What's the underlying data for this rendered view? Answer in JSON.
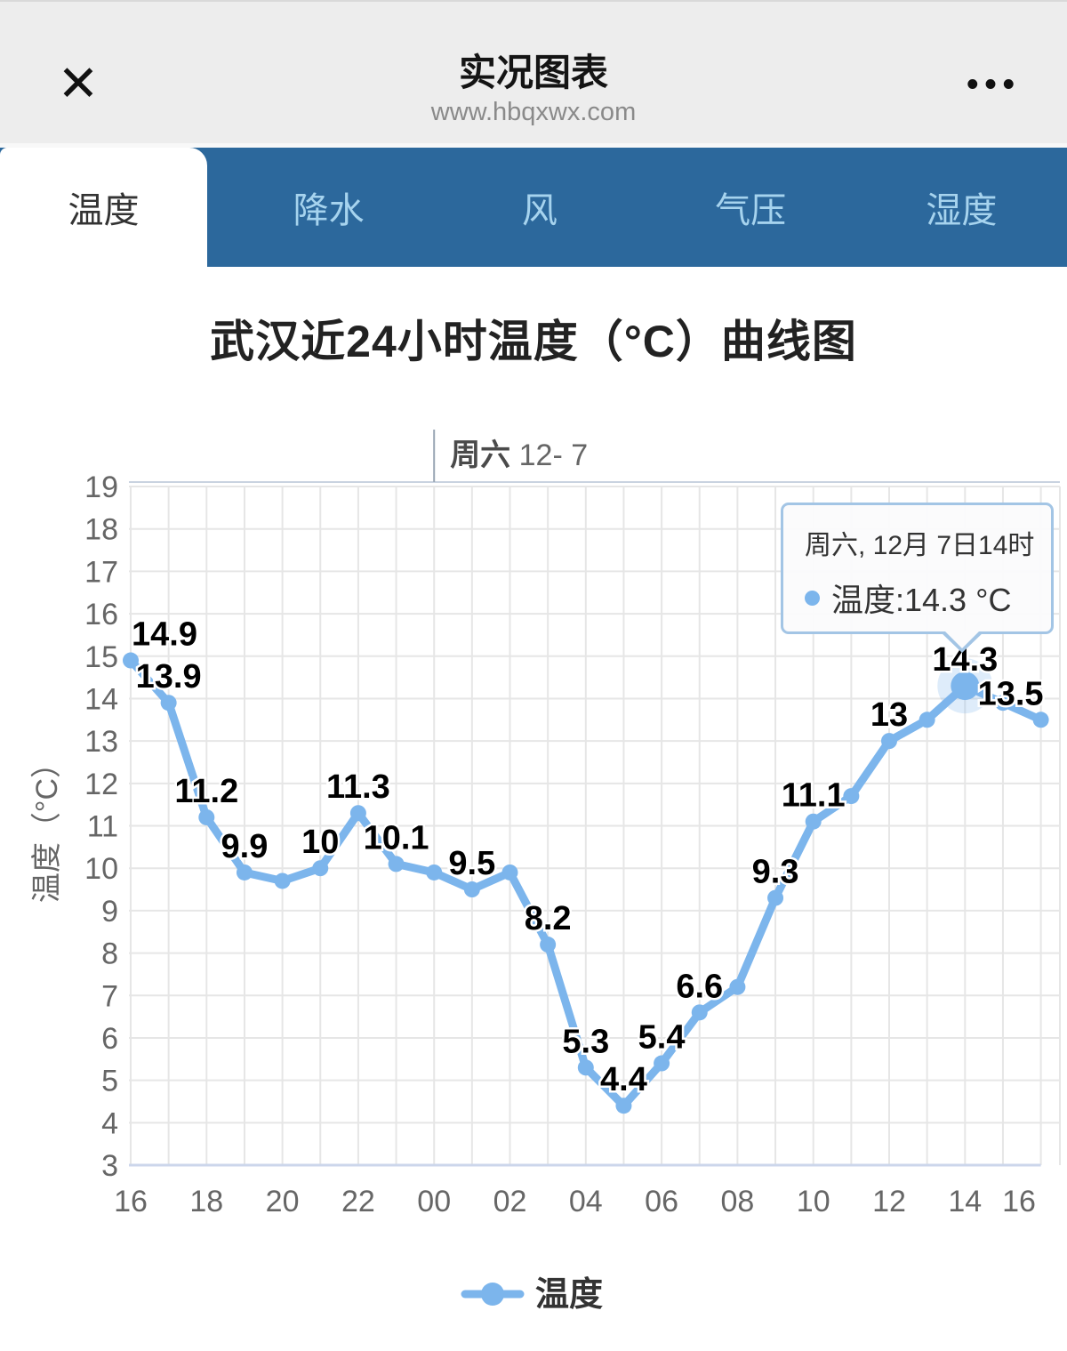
{
  "header": {
    "title": "实况图表",
    "url": "www.hbqxwx.com",
    "close_label": "✕",
    "menu_label": "•••"
  },
  "tabs": [
    {
      "label": "温度",
      "active": true
    },
    {
      "label": "降水",
      "active": false
    },
    {
      "label": "风",
      "active": false
    },
    {
      "label": "气压",
      "active": false
    },
    {
      "label": "湿度",
      "active": false
    }
  ],
  "page_title": "武汉近24小时温度（°C）曲线图",
  "tooltip": {
    "title": "周六, 12月 7日14时",
    "text": "温度:14.3 °C"
  },
  "colors": {
    "accent_line": "#7cb5ec",
    "tab_bar": "#2c689c",
    "header_bg": "#ededed",
    "grid": "#e6e6e6",
    "axis_line": "#ccd6eb",
    "axis_text": "#666666",
    "data_label": "#000000"
  },
  "chart_data": {
    "type": "line",
    "title": "武汉近24小时温度（°C）曲线图",
    "series_name": "温度",
    "xlabel": "",
    "ylabel": "温度（°C）",
    "ylim": [
      3,
      19
    ],
    "x_hours": [
      "16",
      "17",
      "18",
      "19",
      "20",
      "21",
      "22",
      "23",
      "00",
      "01",
      "02",
      "03",
      "04",
      "05",
      "06",
      "07",
      "08",
      "09",
      "10",
      "11",
      "12",
      "13",
      "14",
      "15",
      "16"
    ],
    "values": [
      14.9,
      13.9,
      11.2,
      9.9,
      9.7,
      10,
      11.3,
      10.1,
      9.9,
      9.5,
      9.9,
      8.2,
      5.3,
      4.4,
      5.4,
      6.6,
      7.2,
      9.3,
      11.1,
      11.7,
      13,
      13.5,
      14.3,
      13.9,
      13.5
    ],
    "show_label": [
      1,
      1,
      1,
      1,
      0,
      1,
      1,
      1,
      0,
      1,
      0,
      1,
      1,
      1,
      1,
      1,
      0,
      1,
      1,
      0,
      1,
      0,
      1,
      0,
      1
    ],
    "label_dx": {
      "0": 38,
      "24": -34
    },
    "active_index": 22,
    "active_point": {
      "hour": "14",
      "value": 14.3
    },
    "day_band": {
      "label_day": "周六",
      "label_date": "12- 7",
      "tick_index": 8
    },
    "x_tick_every": 2,
    "grid": true,
    "legend_position": "bottom"
  }
}
